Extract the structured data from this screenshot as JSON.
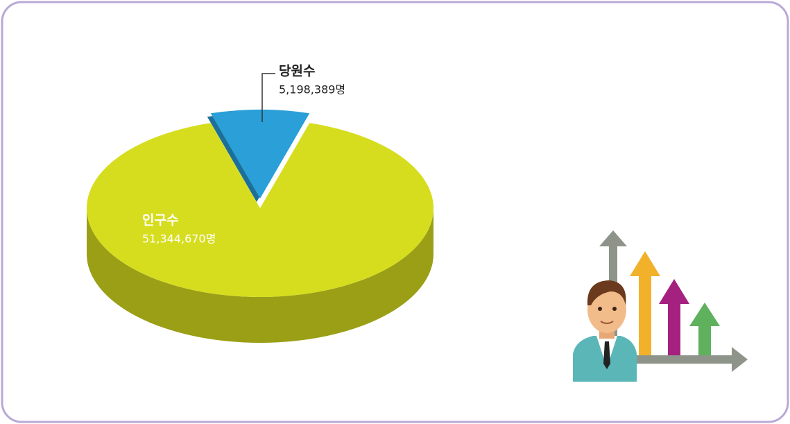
{
  "chart_data": {
    "type": "pie",
    "categories": [
      "당원수",
      "인구수"
    ],
    "values": [
      5198389,
      51344670
    ],
    "value_labels": [
      "5,198,389명",
      "51,344,670명"
    ],
    "colors": [
      "#2a9fd8",
      "#d6dd1e"
    ]
  }
}
